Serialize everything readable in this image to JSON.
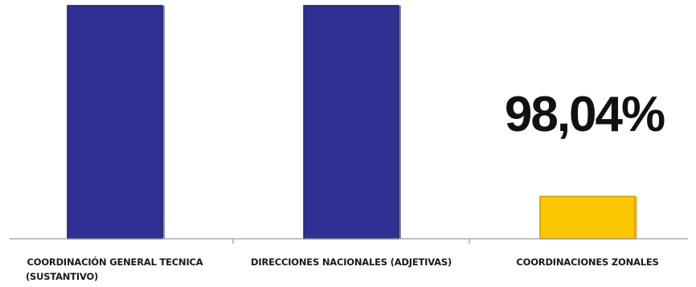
{
  "chart_data": {
    "type": "bar",
    "categories": [
      [
        "COORDINACIÓN GENERAL TECNICA",
        "(SUSTANTIVO)"
      ],
      [
        "DIRECCIONES NACIONALES (ADJETIVAS)"
      ],
      [
        "COORDINACIONES ZONALES"
      ]
    ],
    "values": [
      null,
      null,
      98.04
    ],
    "data_labels": [
      "",
      "",
      "98,04%"
    ],
    "bar_colors": [
      "#2e3192",
      "#2e3192",
      "#fcc700"
    ],
    "bar_edge_colors": [
      "#1f2266",
      "#1f2266",
      "#c79a00"
    ],
    "title": "",
    "xlabel": "",
    "ylabel": "",
    "grid": false,
    "legend": "none"
  }
}
